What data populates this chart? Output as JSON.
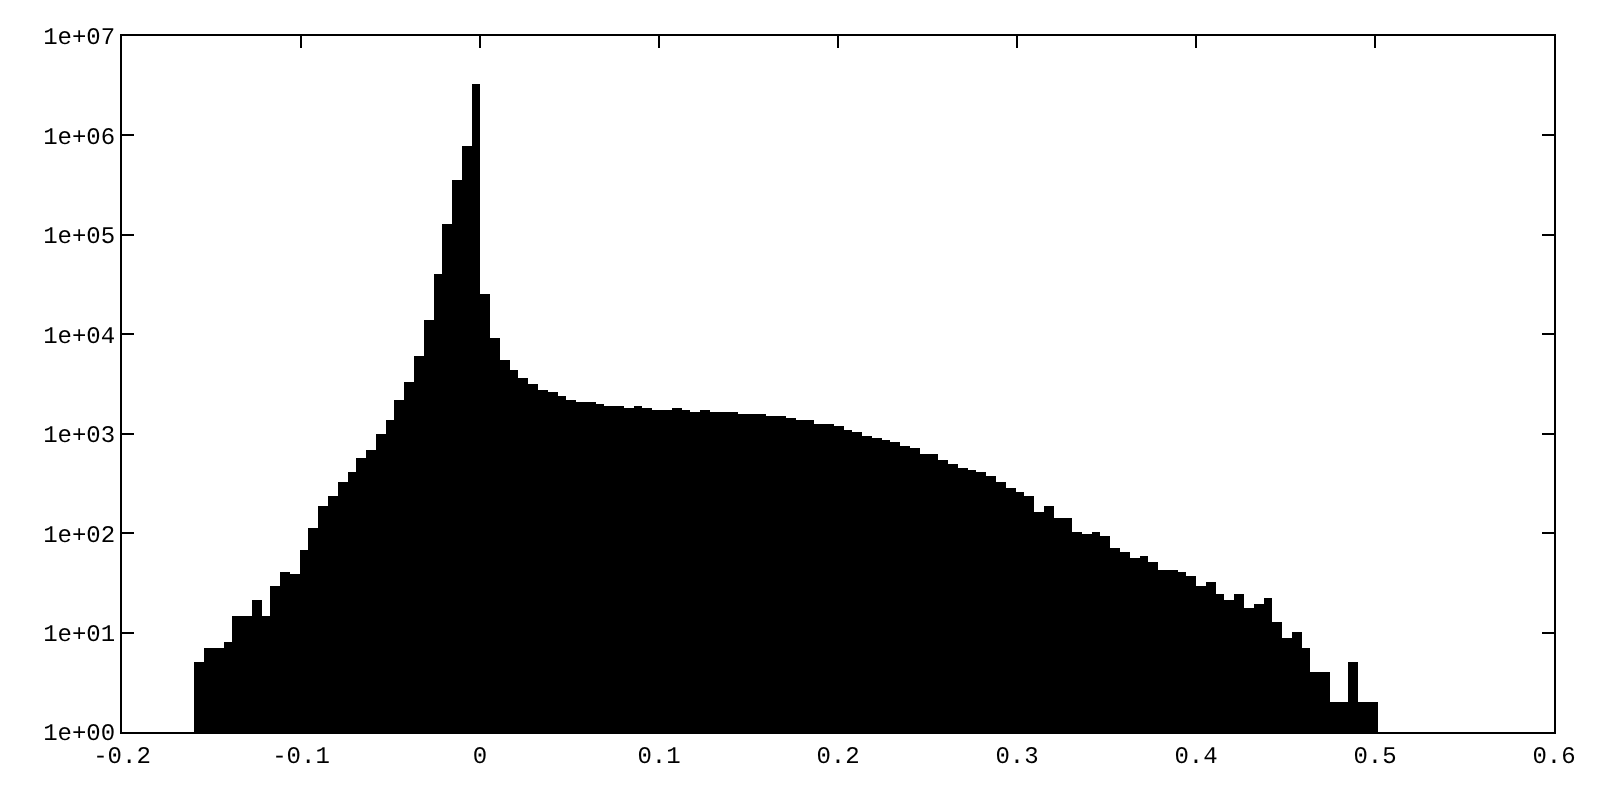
{
  "chart_data": {
    "type": "histogram",
    "bins": [
      -0.1595,
      -0.15417,
      -0.14884,
      -0.14351,
      -0.13818,
      -0.13285,
      -0.12752,
      -0.12219,
      -0.11686,
      -0.11153,
      -0.1062,
      -0.10087,
      -0.09554,
      -0.09021,
      -0.08488,
      -0.07955,
      -0.07422,
      -0.06889,
      -0.06356,
      -0.05823,
      -0.0529,
      -0.04757,
      -0.04224,
      -0.03691,
      -0.03158,
      -0.02625,
      -0.02092,
      -0.01559,
      -0.01026,
      -0.00493,
      0.0004,
      0.00573,
      0.01106,
      0.01639,
      0.02172,
      0.02705,
      0.03238,
      0.03771,
      0.04304,
      0.04837,
      0.0537,
      0.05903,
      0.06436,
      0.06969,
      0.07502,
      0.08035,
      0.08568,
      0.09101,
      0.09634,
      0.10167,
      0.107,
      0.11233,
      0.11766,
      0.12299,
      0.12832,
      0.13365,
      0.13898,
      0.14431,
      0.14964,
      0.15497,
      0.1603,
      0.16563,
      0.17096,
      0.17629,
      0.18162,
      0.18695,
      0.19228,
      0.19761,
      0.20294,
      0.20827,
      0.2136,
      0.21893,
      0.22426,
      0.22959,
      0.23492,
      0.24025,
      0.24558,
      0.25091,
      0.25624,
      0.26157,
      0.2669,
      0.27223,
      0.27756,
      0.28289,
      0.28822,
      0.29355,
      0.29888,
      0.30421,
      0.30954,
      0.31487,
      0.3202,
      0.32553,
      0.33086,
      0.33619,
      0.34152,
      0.34685,
      0.35218,
      0.35751,
      0.36284,
      0.36817,
      0.3735,
      0.37883,
      0.38416,
      0.38949,
      0.39482,
      0.40015,
      0.40548,
      0.41081,
      0.41614,
      0.42147,
      0.4268,
      0.43213,
      0.43746,
      0.44279,
      0.44812,
      0.45345,
      0.45878,
      0.46411,
      0.46944,
      0.47477,
      0.4801,
      0.48543,
      0.49076,
      0.49609,
      0.50142
    ],
    "values": [
      5,
      7,
      7,
      8,
      15,
      15,
      21,
      15,
      29,
      40,
      38,
      69,
      113,
      190,
      240,
      320,
      420,
      570,
      690,
      1000,
      1400,
      2200,
      3300,
      6000,
      14000,
      40000,
      130000,
      360000,
      770000,
      3300000,
      26000,
      9100,
      5500,
      4400,
      3600,
      3200,
      2800,
      2600,
      2400,
      2200,
      2100,
      2100,
      2000,
      1900,
      1900,
      1850,
      1900,
      1800,
      1740,
      1740,
      1820,
      1740,
      1690,
      1740,
      1690,
      1690,
      1660,
      1610,
      1610,
      1580,
      1540,
      1510,
      1450,
      1380,
      1360,
      1280,
      1240,
      1180,
      1100,
      1030,
      955,
      910,
      870,
      830,
      770,
      735,
      630,
      630,
      550,
      500,
      460,
      440,
      420,
      370,
      320,
      280,
      260,
      240,
      160,
      190,
      140,
      140,
      105,
      100,
      105,
      94,
      71,
      65,
      55,
      58,
      52,
      42,
      42,
      40,
      37,
      30,
      33,
      25,
      21,
      24,
      18,
      19,
      22,
      13,
      9,
      10,
      7,
      4,
      4,
      2,
      2,
      5,
      2,
      2
    ],
    "color": "#000000",
    "xlim": [
      -0.2,
      0.6
    ],
    "xticks": [
      -0.2,
      -0.1,
      0,
      0.1,
      0.2,
      0.3,
      0.4,
      0.5,
      0.6
    ],
    "ylim": [
      1,
      10000000
    ],
    "yticks": [
      {
        "value": 1,
        "label": "1e+00"
      },
      {
        "value": 10,
        "label": "1e+01"
      },
      {
        "value": 100,
        "label": "1e+02"
      },
      {
        "value": 1000,
        "label": "1e+03"
      },
      {
        "value": 10000,
        "label": "1e+04"
      },
      {
        "value": 100000,
        "label": "1e+05"
      },
      {
        "value": 1000000,
        "label": "1e+06"
      },
      {
        "value": 10000000,
        "label": "1e+07"
      }
    ],
    "log": true,
    "grid": false
  }
}
